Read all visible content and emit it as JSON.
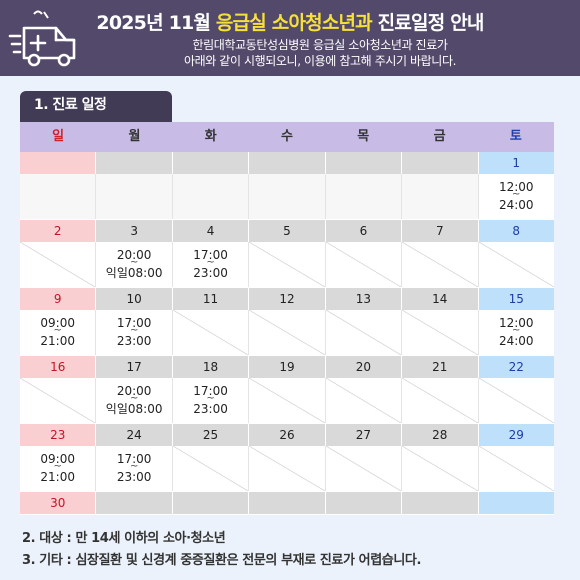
{
  "header": {
    "title_prefix": "2025년 11월 ",
    "title_highlight": "응급실 소아청소년과",
    "title_suffix": " 진료일정 안내",
    "subtitle_line1": "한림대학교동탄성심병원 응급실 소아청소년과 진료가",
    "subtitle_line2": "아래와 같이 시행되오니, 이용에 참고해 주시기 바랍니다.",
    "icon": "ambulance-icon"
  },
  "section": {
    "label": "1. 진료 일정"
  },
  "calendar": {
    "weekdays": [
      "일",
      "월",
      "화",
      "수",
      "목",
      "금",
      "토"
    ],
    "weeks": [
      {
        "dates": [
          "",
          "",
          "",
          "",
          "",
          "",
          "1"
        ],
        "times": [
          {
            "type": "blank"
          },
          {
            "type": "blank"
          },
          {
            "type": "blank"
          },
          {
            "type": "blank"
          },
          {
            "type": "blank"
          },
          {
            "type": "blank"
          },
          {
            "type": "time",
            "from": "12:00",
            "to": "24:00"
          }
        ]
      },
      {
        "dates": [
          "2",
          "3",
          "4",
          "5",
          "6",
          "7",
          "8"
        ],
        "times": [
          {
            "type": "closed"
          },
          {
            "type": "time",
            "from": "20:00",
            "to": "익일08:00"
          },
          {
            "type": "time",
            "from": "17:00",
            "to": "23:00"
          },
          {
            "type": "closed"
          },
          {
            "type": "closed"
          },
          {
            "type": "closed"
          },
          {
            "type": "closed"
          }
        ]
      },
      {
        "dates": [
          "9",
          "10",
          "11",
          "12",
          "13",
          "14",
          "15"
        ],
        "times": [
          {
            "type": "time",
            "from": "09:00",
            "to": "21:00"
          },
          {
            "type": "time",
            "from": "17:00",
            "to": "23:00"
          },
          {
            "type": "closed"
          },
          {
            "type": "closed"
          },
          {
            "type": "closed"
          },
          {
            "type": "closed"
          },
          {
            "type": "time",
            "from": "12:00",
            "to": "24:00"
          }
        ]
      },
      {
        "dates": [
          "16",
          "17",
          "18",
          "19",
          "20",
          "21",
          "22"
        ],
        "times": [
          {
            "type": "closed"
          },
          {
            "type": "time",
            "from": "20:00",
            "to": "익일08:00"
          },
          {
            "type": "time",
            "from": "17:00",
            "to": "23:00"
          },
          {
            "type": "closed"
          },
          {
            "type": "closed"
          },
          {
            "type": "closed"
          },
          {
            "type": "closed"
          }
        ]
      },
      {
        "dates": [
          "23",
          "24",
          "25",
          "26",
          "27",
          "28",
          "29"
        ],
        "times": [
          {
            "type": "time",
            "from": "09:00",
            "to": "21:00"
          },
          {
            "type": "time",
            "from": "17:00",
            "to": "23:00"
          },
          {
            "type": "closed"
          },
          {
            "type": "closed"
          },
          {
            "type": "closed"
          },
          {
            "type": "closed"
          },
          {
            "type": "closed"
          }
        ]
      },
      {
        "dates": [
          "30",
          "",
          "",
          "",
          "",
          "",
          ""
        ],
        "times": []
      }
    ],
    "tilde": "~"
  },
  "notes": {
    "target": "2. 대상 : 만 14세 이하의 소아·청소년",
    "etc": "3. 기타 : 심장질환 및 신경계 중증질환은 전문의 부재로 진료가 어렵습니다."
  },
  "colors": {
    "header_bg": "#53496b",
    "highlight": "#f6e03a",
    "weekday_bg": "#c8bce6",
    "sunday_bg": "#f9cfd2",
    "saturday_bg": "#bfe0fa",
    "date_bg": "#d9d9d9"
  }
}
